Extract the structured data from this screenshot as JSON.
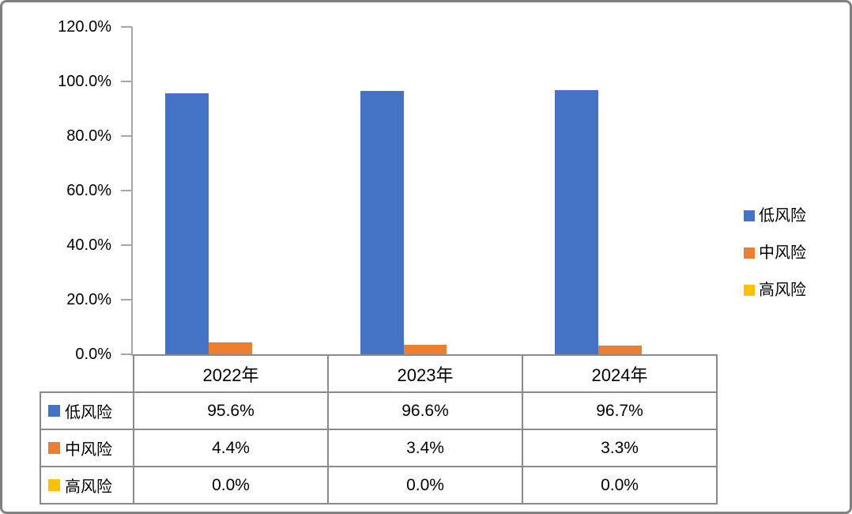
{
  "chart_data": {
    "type": "bar",
    "title": "",
    "categories": [
      "2022年",
      "2023年",
      "2024年"
    ],
    "series": [
      {
        "name": "低风险",
        "color": "#4472C4",
        "values": [
          95.6,
          96.6,
          96.7
        ]
      },
      {
        "name": "中风险",
        "color": "#ED7D31",
        "values": [
          4.4,
          3.4,
          3.3
        ]
      },
      {
        "name": "高风险",
        "color": "#FFC000",
        "values": [
          0.0,
          0.0,
          0.0
        ]
      }
    ],
    "ylim": [
      0,
      120
    ],
    "ytick_labels": [
      "120.0%",
      "100.0%",
      "80.0%",
      "60.0%",
      "40.0%",
      "20.0%",
      "0.0%"
    ],
    "grid": false,
    "legend_position": "right",
    "data_table": {
      "headers": [
        "2022年",
        "2023年",
        "2024年"
      ],
      "rows": [
        {
          "label": "低风险",
          "values": [
            "95.6%",
            "96.6%",
            "96.7%"
          ]
        },
        {
          "label": "中风险",
          "values": [
            "4.4%",
            "3.4%",
            "3.3%"
          ]
        },
        {
          "label": "高风险",
          "values": [
            "0.0%",
            "0.0%",
            "0.0%"
          ]
        }
      ]
    }
  },
  "legend": {
    "items": [
      {
        "label": "低风险",
        "color": "#4472C4"
      },
      {
        "label": "中风险",
        "color": "#ED7D31"
      },
      {
        "label": "高风险",
        "color": "#FFC000"
      }
    ]
  },
  "colors": {
    "axis_line": "#A6A6A6",
    "table_border": "#8a8a8a",
    "outer_frame": "#808080",
    "background": "#ffffff",
    "text": "#000000"
  }
}
